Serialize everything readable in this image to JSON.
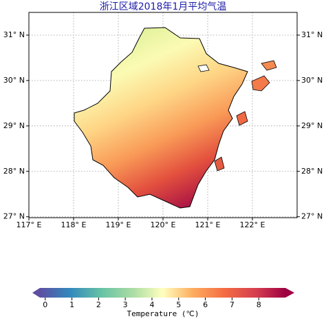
{
  "map": {
    "title": "浙江区域2018年1月平均气温",
    "xlim": [
      117,
      123
    ],
    "ylim": [
      26.98,
      31.5
    ],
    "xticks": [
      {
        "value": 117,
        "label": "117° E"
      },
      {
        "value": 118,
        "label": "118° E"
      },
      {
        "value": 119,
        "label": "119° E"
      },
      {
        "value": 120,
        "label": "120° E"
      },
      {
        "value": 121,
        "label": "121° E"
      },
      {
        "value": 122,
        "label": "122° E"
      }
    ],
    "yticks": [
      {
        "value": 27,
        "label": "27° N"
      },
      {
        "value": 28,
        "label": "28° N"
      },
      {
        "value": 29,
        "label": "29° N"
      },
      {
        "value": 30,
        "label": "30° N"
      },
      {
        "value": 31,
        "label": "31° N"
      }
    ],
    "grid": true,
    "colorbar": {
      "label": "Temperature (℃)",
      "lim": [
        -0.2,
        9
      ],
      "ticks": [
        0,
        1,
        2,
        3,
        4,
        5,
        6,
        7,
        8
      ]
    }
  }
}
